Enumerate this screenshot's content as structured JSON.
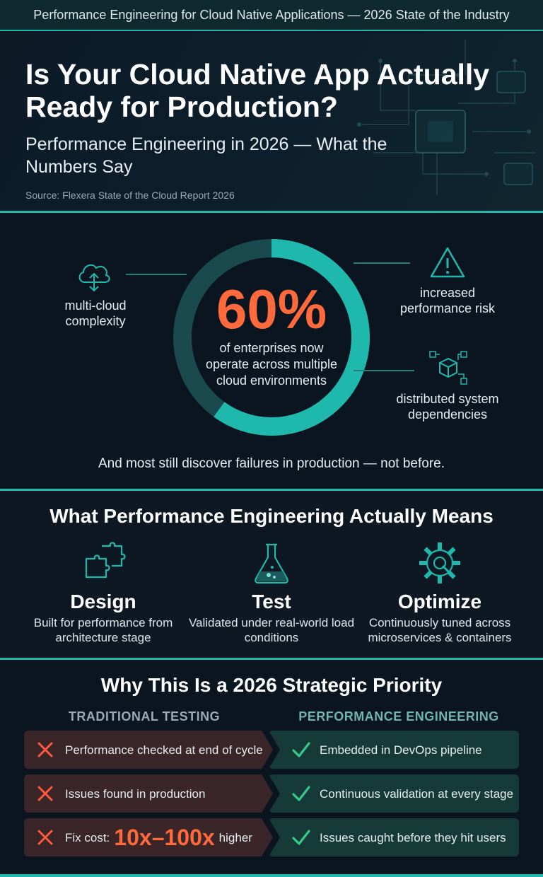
{
  "header": {
    "topbar": "Performance Engineering for Cloud Native Applications — 2026 State of the Industry",
    "title": "Is Your Cloud Native App Actually Ready for Production?",
    "subtitle": "Performance Engineering in 2026 — What the Numbers Say",
    "source": "Source: Flexera State of the Cloud Report 2026"
  },
  "stat": {
    "percent": "60%",
    "fraction": 0.6,
    "description": "of enterprises now operate across multiple cloud environments",
    "left_label": "multi-cloud complexity",
    "right_top_label": "increased performance risk",
    "right_bottom_label": "distributed system dependencies",
    "footer": "And most still discover failures in production — not before.",
    "colors": {
      "accent": "#1fb8ad",
      "ring_track": "#1b4a4e",
      "highlight": "#ff6a3c"
    }
  },
  "means": {
    "title": "What Performance Engineering Actually Means",
    "pillars": [
      {
        "icon": "puzzle-icon",
        "title": "Design",
        "desc": "Built for performance from architecture stage"
      },
      {
        "icon": "flask-icon",
        "title": "Test",
        "desc": "Validated under real-world load conditions"
      },
      {
        "icon": "gear-icon",
        "title": "Optimize",
        "desc": "Continuously tuned across microservices & containers"
      }
    ]
  },
  "priority": {
    "title": "Why This Is a 2026 Strategic Priority",
    "traditional_head": "TRADITIONAL TESTING",
    "engineering_head": "PERFORMANCE ENGINEERING",
    "rows": [
      {
        "bad": "Performance checked at end of cycle",
        "good": "Embedded in DevOps pipeline"
      },
      {
        "bad": "Issues found in production",
        "good": "Continuous validation at every stage"
      },
      {
        "bad_prefix": "Fix cost:",
        "bad_highlight": "10x–100x",
        "bad_suffix": "higher",
        "good": "Issues caught before they hit users"
      }
    ],
    "colors": {
      "bad": "#3a2528",
      "good": "#153a37",
      "x": "#ff5a3c",
      "check": "#36c98a"
    }
  }
}
